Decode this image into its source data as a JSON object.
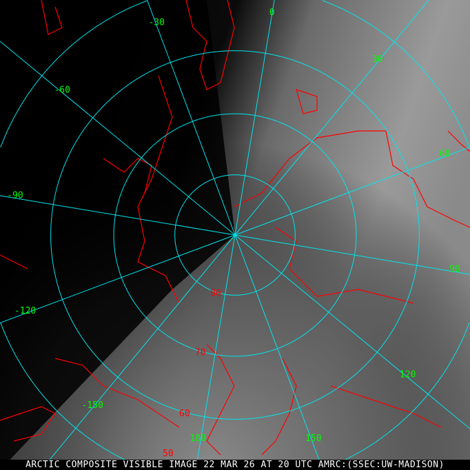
{
  "caption": "ARCTIC COMPOSITE VISIBLE IMAGE 22 MAR 26 AT 20 UTC AMRC:(SSEC:UW-MADISON)",
  "colors": {
    "graticule": "#00e5ee",
    "coastline": "#ff0000",
    "longitude_labels": "#00ff00",
    "latitude_labels": "#ff0000",
    "caption": "#ffffff"
  },
  "projection": "polar stereographic, north pole",
  "longitudes": [
    {
      "value": 0,
      "label": "0"
    },
    {
      "value": 30,
      "label": "30"
    },
    {
      "value": 60,
      "label": "60"
    },
    {
      "value": 90,
      "label": "90"
    },
    {
      "value": 120,
      "label": "120"
    },
    {
      "value": 150,
      "label": "150"
    },
    {
      "value": 180,
      "label": "180"
    },
    {
      "value": -150,
      "label": "-150"
    },
    {
      "value": -120,
      "label": "-120"
    },
    {
      "value": -90,
      "label": "-90"
    },
    {
      "value": -60,
      "label": "-60"
    },
    {
      "value": -30,
      "label": "-30"
    }
  ],
  "latitudes": [
    {
      "value": 80,
      "label": "80"
    },
    {
      "value": 70,
      "label": "70"
    },
    {
      "value": 60,
      "label": "60"
    },
    {
      "value": 50,
      "label": "50"
    }
  ]
}
